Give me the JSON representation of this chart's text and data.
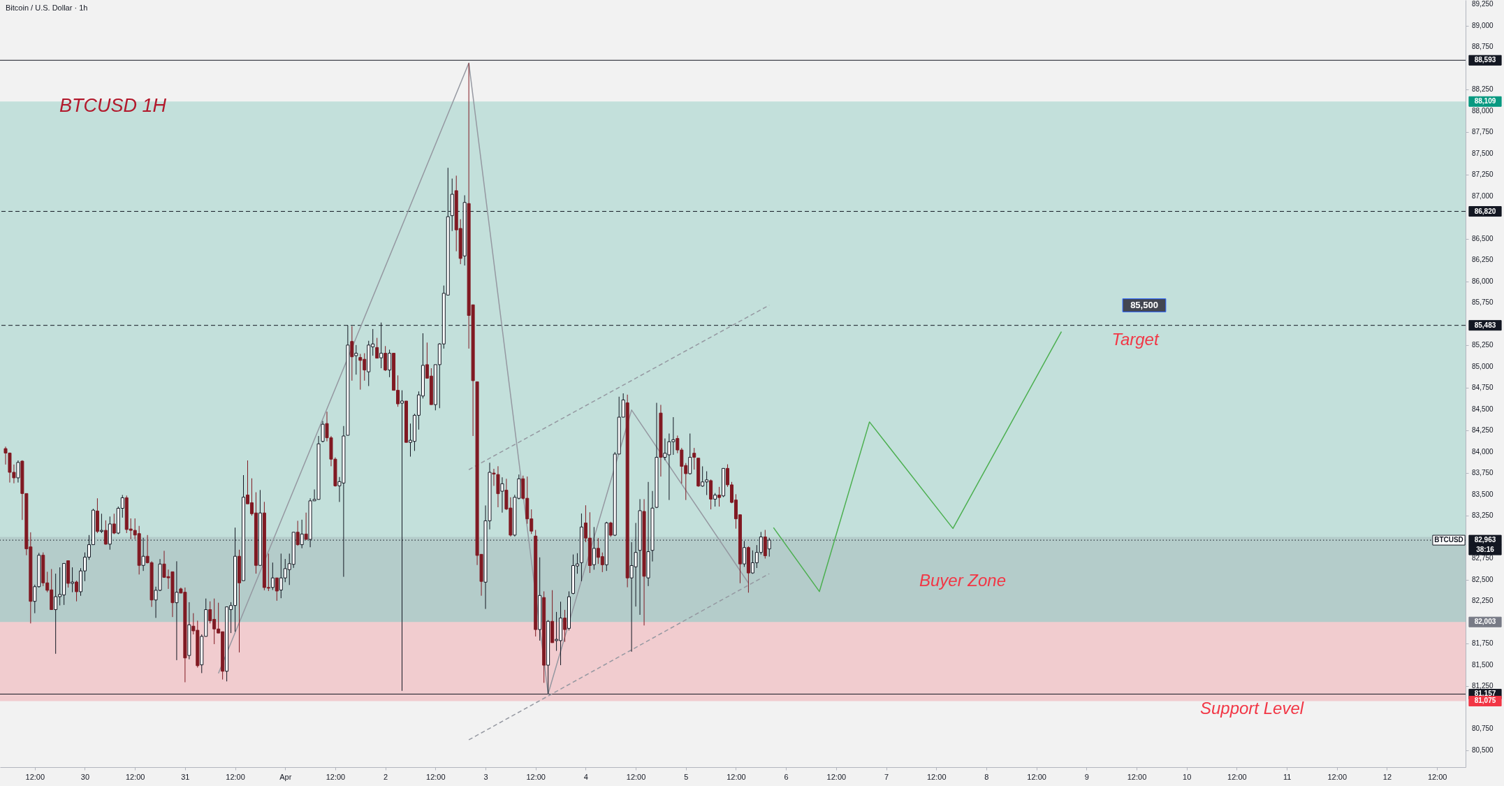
{
  "chart_data": {
    "type": "candlestick",
    "title": "Bitcoin / U.S. Dollar · 1h",
    "xlim": [
      "--03-29T04:30",
      "--04-12T18:00"
    ],
    "ylim": [
      80300,
      89300
    ],
    "xticks": [
      {
        "value": "--03-29T12:00",
        "label": "12:00"
      },
      {
        "value": "--03-30",
        "label": "30"
      },
      {
        "value": "--03-30T12:00",
        "label": "12:00"
      },
      {
        "value": "--03-31",
        "label": "31"
      },
      {
        "value": "--03-31T12:00",
        "label": "12:00"
      },
      {
        "value": "--04-01",
        "label": "Apr"
      },
      {
        "value": "--04-01T12:00",
        "label": "12:00"
      },
      {
        "value": "--04-02",
        "label": "2"
      },
      {
        "value": "--04-02T12:00",
        "label": "12:00"
      },
      {
        "value": "--04-03",
        "label": "3"
      },
      {
        "value": "--04-03T12:00",
        "label": "12:00"
      },
      {
        "value": "--04-04",
        "label": "4"
      },
      {
        "value": "--04-04T12:00",
        "label": "12:00"
      },
      {
        "value": "--04-05",
        "label": "5"
      },
      {
        "value": "--04-05T12:00",
        "label": "12:00"
      },
      {
        "value": "--04-06",
        "label": "6"
      },
      {
        "value": "--04-06T12:00",
        "label": "12:00"
      },
      {
        "value": "--04-07",
        "label": "7"
      },
      {
        "value": "--04-07T12:00",
        "label": "12:00"
      },
      {
        "value": "--04-08",
        "label": "8"
      },
      {
        "value": "--04-08T12:00",
        "label": "12:00"
      },
      {
        "value": "--04-09",
        "label": "9"
      },
      {
        "value": "--04-09T12:00",
        "label": "12:00"
      },
      {
        "value": "--04-10",
        "label": "10"
      },
      {
        "value": "--04-10T12:00",
        "label": "12:00"
      },
      {
        "value": "--04-11",
        "label": "11"
      },
      {
        "value": "--04-11T12:00",
        "label": "12:00"
      },
      {
        "value": "--04-12",
        "label": "12"
      },
      {
        "value": "--04-12T12:00",
        "label": "12:00"
      }
    ],
    "yticks": [
      {
        "value": 80500,
        "label": "80,500"
      },
      {
        "value": 80750,
        "label": "80,750"
      },
      {
        "value": 81250,
        "label": "81,250"
      },
      {
        "value": 81500,
        "label": "81,500"
      },
      {
        "value": 81750,
        "label": "81,750"
      },
      {
        "value": 82250,
        "label": "82,250"
      },
      {
        "value": 82500,
        "label": "82,500"
      },
      {
        "value": 82750,
        "label": "82,750"
      },
      {
        "value": 83250,
        "label": "83,250"
      },
      {
        "value": 83500,
        "label": "83,500"
      },
      {
        "value": 83750,
        "label": "83,750"
      },
      {
        "value": 84000,
        "label": "84,000"
      },
      {
        "value": 84250,
        "label": "84,250"
      },
      {
        "value": 84500,
        "label": "84,500"
      },
      {
        "value": 84750,
        "label": "84,750"
      },
      {
        "value": 85000,
        "label": "85,000"
      },
      {
        "value": 85250,
        "label": "85,250"
      },
      {
        "value": 85750,
        "label": "85,750"
      },
      {
        "value": 86000,
        "label": "86,000"
      },
      {
        "value": 86250,
        "label": "86,250"
      },
      {
        "value": 86500,
        "label": "86,500"
      },
      {
        "value": 87000,
        "label": "87,000"
      },
      {
        "value": 87250,
        "label": "87,250"
      },
      {
        "value": 87500,
        "label": "87,500"
      },
      {
        "value": 87750,
        "label": "87,750"
      },
      {
        "value": 88000,
        "label": "88,000"
      },
      {
        "value": 88250,
        "label": "88,250"
      },
      {
        "value": 88750,
        "label": "88,750"
      },
      {
        "value": 89000,
        "label": "89,000"
      },
      {
        "value": 89250,
        "label": "89,250"
      }
    ],
    "x": [
      "--03-29T05:00",
      "--03-29T06:00",
      "--03-29T07:00",
      "--03-29T08:00",
      "--03-29T09:00",
      "--03-29T10:00",
      "--03-29T11:00",
      "--03-29T12:00",
      "--03-29T13:00",
      "--03-29T14:00",
      "--03-29T15:00",
      "--03-29T16:00",
      "--03-29T17:00",
      "--03-29T18:00",
      "--03-29T19:00",
      "--03-29T20:00",
      "--03-29T21:00",
      "--03-29T22:00",
      "--03-29T23:00",
      "--03-30T00:00",
      "--03-30T01:00",
      "--03-30T02:00",
      "--03-30T03:00",
      "--03-30T04:00",
      "--03-30T05:00",
      "--03-30T06:00",
      "--03-30T07:00",
      "--03-30T08:00",
      "--03-30T09:00",
      "--03-30T10:00",
      "--03-30T11:00",
      "--03-30T12:00",
      "--03-30T13:00",
      "--03-30T14:00",
      "--03-30T15:00",
      "--03-30T16:00",
      "--03-30T17:00",
      "--03-30T18:00",
      "--03-30T19:00",
      "--03-30T20:00",
      "--03-30T21:00",
      "--03-30T22:00",
      "--03-30T23:00",
      "--03-31T00:00",
      "--03-31T01:00",
      "--03-31T02:00",
      "--03-31T03:00",
      "--03-31T04:00",
      "--03-31T05:00",
      "--03-31T06:00",
      "--03-31T07:00",
      "--03-31T08:00",
      "--03-31T09:00",
      "--03-31T10:00",
      "--03-31T11:00",
      "--03-31T12:00",
      "--03-31T13:00",
      "--03-31T14:00",
      "--03-31T15:00",
      "--03-31T16:00",
      "--03-31T17:00",
      "--03-31T18:00",
      "--03-31T19:00",
      "--03-31T20:00",
      "--03-31T21:00",
      "--03-31T22:00",
      "--03-31T23:00",
      "--04-01T00:00",
      "--04-01T01:00",
      "--04-01T02:00",
      "--04-01T03:00",
      "--04-01T04:00",
      "--04-01T05:00",
      "--04-01T06:00",
      "--04-01T07:00",
      "--04-01T08:00",
      "--04-01T09:00",
      "--04-01T10:00",
      "--04-01T11:00",
      "--04-01T12:00",
      "--04-01T13:00",
      "--04-01T14:00",
      "--04-01T15:00",
      "--04-01T16:00",
      "--04-01T17:00",
      "--04-01T18:00",
      "--04-01T19:00",
      "--04-01T20:00",
      "--04-01T21:00",
      "--04-01T22:00",
      "--04-01T23:00",
      "--04-02T00:00",
      "--04-02T01:00",
      "--04-02T02:00",
      "--04-02T03:00",
      "--04-02T04:00",
      "--04-02T05:00",
      "--04-02T06:00",
      "--04-02T07:00",
      "--04-02T08:00",
      "--04-02T09:00",
      "--04-02T10:00",
      "--04-02T11:00",
      "--04-02T12:00",
      "--04-02T13:00",
      "--04-02T14:00",
      "--04-02T15:00",
      "--04-02T16:00",
      "--04-02T17:00",
      "--04-02T18:00",
      "--04-02T19:00",
      "--04-02T20:00",
      "--04-02T21:00",
      "--04-02T22:00",
      "--04-02T23:00",
      "--04-03T00:00",
      "--04-03T01:00",
      "--04-03T02:00",
      "--04-03T03:00",
      "--04-03T04:00",
      "--04-03T05:00",
      "--04-03T06:00",
      "--04-03T07:00",
      "--04-03T08:00",
      "--04-03T09:00",
      "--04-03T10:00",
      "--04-03T11:00",
      "--04-03T12:00",
      "--04-03T13:00",
      "--04-03T14:00",
      "--04-03T15:00",
      "--04-03T16:00",
      "--04-03T17:00",
      "--04-03T18:00",
      "--04-03T19:00",
      "--04-03T20:00",
      "--04-03T21:00",
      "--04-03T22:00",
      "--04-03T23:00",
      "--04-04T00:00",
      "--04-04T01:00",
      "--04-04T02:00",
      "--04-04T03:00",
      "--04-04T04:00",
      "--04-04T05:00",
      "--04-04T06:00",
      "--04-04T07:00",
      "--04-04T08:00",
      "--04-04T09:00",
      "--04-04T10:00",
      "--04-04T11:00",
      "--04-04T12:00",
      "--04-04T13:00",
      "--04-04T14:00",
      "--04-04T15:00",
      "--04-04T16:00",
      "--04-04T17:00",
      "--04-04T18:00",
      "--04-04T19:00",
      "--04-04T20:00",
      "--04-04T21:00",
      "--04-04T22:00",
      "--04-04T23:00",
      "--04-05T00:00",
      "--04-05T01:00",
      "--04-05T02:00",
      "--04-05T03:00",
      "--04-05T04:00",
      "--04-05T05:00",
      "--04-05T06:00",
      "--04-05T07:00",
      "--04-05T08:00",
      "--04-05T09:00",
      "--04-05T10:00",
      "--04-05T11:00",
      "--04-05T12:00",
      "--04-05T13:00",
      "--04-05T14:00",
      "--04-05T15:00",
      "--04-05T16:00",
      "--04-05T17:00",
      "--04-05T18:00",
      "--04-05T19:00",
      "--04-05T20:00"
    ],
    "ohlc": [
      [
        84037,
        84060,
        83850,
        83985
      ],
      [
        83985,
        83990,
        83639,
        83759
      ],
      [
        83759,
        83850,
        83630,
        83694
      ],
      [
        83694,
        83898,
        83639,
        83875
      ],
      [
        83890,
        83900,
        83200,
        83510
      ],
      [
        83510,
        83510,
        82786,
        82861
      ],
      [
        82884,
        83055,
        81986,
        82245
      ],
      [
        82245,
        82440,
        82106,
        82417
      ],
      [
        82417,
        82813,
        82407,
        82786
      ],
      [
        82786,
        82819,
        82424,
        82462
      ],
      [
        82462,
        82592,
        82352,
        82375
      ],
      [
        82380,
        82624,
        82148,
        82148
      ],
      [
        82148,
        82570,
        81630,
        82300
      ],
      [
        82300,
        82644,
        82197,
        82326
      ],
      [
        82320,
        82690,
        82203,
        82690
      ],
      [
        82722,
        82722,
        82407,
        82456
      ],
      [
        82456,
        82644,
        82352,
        82472
      ],
      [
        82472,
        82488,
        82245,
        82358
      ],
      [
        82358,
        82634,
        82310,
        82602
      ],
      [
        82602,
        82819,
        82482,
        82764
      ],
      [
        82764,
        83023,
        82732,
        82910
      ],
      [
        82910,
        83331,
        82910,
        83315
      ],
      [
        83305,
        83454,
        83046,
        83065
      ],
      [
        83065,
        83273,
        83046,
        83078
      ],
      [
        83078,
        83195,
        82910,
        82916
      ],
      [
        82916,
        83240,
        82851,
        83153
      ],
      [
        83153,
        83273,
        83033,
        83046
      ],
      [
        83046,
        83357,
        83033,
        83337
      ],
      [
        83337,
        83493,
        83227,
        83460
      ],
      [
        83460,
        83486,
        83046,
        83088
      ],
      [
        83094,
        83218,
        82974,
        83078
      ],
      [
        83078,
        83218,
        82974,
        83023
      ],
      [
        83040,
        83130,
        82560,
        82667
      ],
      [
        82667,
        82991,
        82602,
        82774
      ],
      [
        82774,
        83023,
        82690,
        82699
      ],
      [
        82699,
        82715,
        82180,
        82261
      ],
      [
        82261,
        82417,
        82051,
        82375
      ],
      [
        82375,
        82741,
        82365,
        82683
      ],
      [
        82683,
        82838,
        82521,
        82527
      ],
      [
        82535,
        82618,
        82391,
        82521
      ],
      [
        82592,
        82592,
        82061,
        82229
      ],
      [
        82229,
        82715,
        81555,
        82352
      ],
      [
        82391,
        82407,
        82342,
        82342
      ],
      [
        82352,
        82407,
        81296,
        81581
      ],
      [
        81610,
        82235,
        81565,
        81970
      ],
      [
        81954,
        82106,
        81857,
        81899
      ],
      [
        81906,
        82018,
        81468,
        81490
      ],
      [
        81500,
        81857,
        81403,
        81834
      ],
      [
        81834,
        82278,
        81834,
        82148
      ],
      [
        82148,
        82245,
        81986,
        82018
      ],
      [
        82034,
        82278,
        81743,
        81921
      ],
      [
        81921,
        82229,
        81873,
        81873
      ],
      [
        81889,
        81889,
        81328,
        81425
      ],
      [
        81425,
        82180,
        81306,
        82180
      ],
      [
        82148,
        82235,
        81873,
        82196
      ],
      [
        82196,
        83110,
        81889,
        82774
      ],
      [
        82774,
        82851,
        81646,
        82462
      ],
      [
        82488,
        83726,
        82488,
        83467
      ],
      [
        83493,
        83898,
        83389,
        83389
      ],
      [
        83402,
        83688,
        83250,
        83273
      ],
      [
        83282,
        83525,
        82570,
        82667
      ],
      [
        82667,
        83551,
        82667,
        83282
      ],
      [
        83282,
        83412,
        82375,
        82407
      ],
      [
        82408,
        82805,
        82366,
        82400
      ],
      [
        82408,
        82700,
        82378,
        82520
      ],
      [
        82520,
        82520,
        82252,
        82366
      ],
      [
        82378,
        82805,
        82282,
        82520
      ],
      [
        82520,
        82742,
        82470,
        82629
      ],
      [
        82617,
        82805,
        82437,
        82687
      ],
      [
        82679,
        83056,
        82638,
        83056
      ],
      [
        83056,
        83190,
        82897,
        82910
      ],
      [
        82910,
        83203,
        82868,
        83035
      ],
      [
        83035,
        83286,
        82972,
        82972
      ],
      [
        82972,
        83454,
        82880,
        83424
      ],
      [
        83424,
        83558,
        83424,
        83441
      ],
      [
        83441,
        84185,
        83441,
        84093
      ],
      [
        84122,
        84361,
        84110,
        84323
      ],
      [
        84331,
        84470,
        84122,
        84164
      ],
      [
        84164,
        84185,
        83830,
        83913
      ],
      [
        83913,
        83934,
        83591,
        83600
      ],
      [
        83600,
        83704,
        83411,
        83650
      ],
      [
        83633,
        84302,
        82533,
        84185
      ],
      [
        84193,
        85482,
        84193,
        85252
      ],
      [
        85294,
        85474,
        84834,
        85114
      ],
      [
        85127,
        85252,
        84905,
        85156
      ],
      [
        85106,
        85148,
        84729,
        85072
      ],
      [
        85085,
        85156,
        84834,
        84959
      ],
      [
        84938,
        85302,
        84771,
        85252
      ],
      [
        85231,
        85440,
        85127,
        85265
      ],
      [
        85223,
        85336,
        85098,
        85098
      ],
      [
        85102,
        85516,
        84980,
        85156
      ],
      [
        85156,
        85240,
        84947,
        84959
      ],
      [
        84959,
        85198,
        84875,
        85156
      ],
      [
        85156,
        85156,
        84721,
        84721
      ],
      [
        84721,
        84896,
        84528,
        84562
      ],
      [
        84570,
        84721,
        81195,
        84595
      ],
      [
        84595,
        84595,
        84110,
        84110
      ],
      [
        84110,
        84331,
        83943,
        84135
      ],
      [
        84122,
        84445,
        84010,
        84428
      ],
      [
        84428,
        84708,
        84260,
        84667
      ],
      [
        84654,
        85390,
        84625,
        85014
      ],
      [
        85022,
        85281,
        84863,
        84863
      ],
      [
        84888,
        84980,
        84553,
        84553
      ],
      [
        84553,
        85022,
        84486,
        85022
      ],
      [
        85022,
        85273,
        84511,
        85265
      ],
      [
        85265,
        85950,
        85210,
        85859
      ],
      [
        85838,
        87331,
        85838,
        86758
      ],
      [
        86770,
        87205,
        86590,
        87021
      ],
      [
        87063,
        87239,
        86352,
        86603
      ],
      [
        86620,
        86728,
        86201,
        86268
      ],
      [
        86297,
        87009,
        86185,
        86925
      ],
      [
        86912,
        88560,
        85210,
        85599
      ],
      [
        85724,
        85724,
        84185,
        84834
      ],
      [
        84821,
        84821,
        82671,
        82784
      ],
      [
        82797,
        82797,
        82311,
        82479
      ],
      [
        82470,
        83370,
        82156,
        83190
      ],
      [
        83190,
        83871,
        83089,
        83759
      ],
      [
        83750,
        83800,
        83600,
        83738
      ],
      [
        83733,
        83830,
        83349,
        83508
      ],
      [
        83537,
        83700,
        83286,
        83625
      ],
      [
        83549,
        83683,
        83316,
        83328
      ],
      [
        83340,
        83466,
        83006,
        83022
      ],
      [
        83022,
        83495,
        83006,
        83466
      ],
      [
        83454,
        83733,
        83441,
        83683
      ],
      [
        83683,
        83720,
        83441,
        83454
      ],
      [
        83454,
        83709,
        83155,
        83213
      ],
      [
        83213,
        83324,
        83035,
        83069
      ],
      [
        83011,
        83083,
        81833,
        81914
      ],
      [
        81914,
        82761,
        81784,
        82314
      ],
      [
        82290,
        82362,
        81289,
        81496
      ],
      [
        81496,
        82025,
        81159,
        82011
      ],
      [
        82011,
        82376,
        81760,
        81760
      ],
      [
        81784,
        82121,
        81664,
        81799
      ],
      [
        81784,
        82241,
        81496,
        82049
      ],
      [
        82049,
        82145,
        81770,
        81914
      ],
      [
        81928,
        82362,
        81904,
        82299
      ],
      [
        82338,
        82795,
        82328,
        82665
      ],
      [
        82660,
        82810,
        82569,
        82684
      ],
      [
        82699,
        83276,
        82482,
        83117
      ],
      [
        83165,
        83372,
        82939,
        82987
      ],
      [
        82987,
        83290,
        82578,
        82665
      ],
      [
        82675,
        83117,
        82616,
        82867
      ],
      [
        82867,
        82987,
        82684,
        82761
      ],
      [
        82770,
        82818,
        82588,
        82674
      ],
      [
        82674,
        83179,
        82602,
        83165
      ],
      [
        83165,
        83179,
        83001,
        83021
      ],
      [
        83021,
        83997,
        83011,
        83973
      ],
      [
        83973,
        84646,
        83973,
        84406
      ],
      [
        84406,
        84685,
        84406,
        84608
      ],
      [
        84574,
        84670,
        82410,
        82520
      ],
      [
        82520,
        82939,
        81654,
        82665
      ],
      [
        82650,
        83165,
        82184,
        82819
      ],
      [
        82843,
        83444,
        82087,
        83309
      ],
      [
        83300,
        83444,
        81962,
        82539
      ],
      [
        82520,
        83646,
        82424,
        82828
      ],
      [
        82843,
        83540,
        82713,
        83339
      ],
      [
        83348,
        84574,
        83339,
        83935
      ],
      [
        84454,
        84550,
        83709,
        83935
      ],
      [
        83935,
        84156,
        83901,
        83983
      ],
      [
        83964,
        84214,
        83434,
        84118
      ],
      [
        84118,
        84406,
        83964,
        84142
      ],
      [
        84156,
        84190,
        83983,
        84021
      ],
      [
        84021,
        84045,
        83627,
        83829
      ],
      [
        83839,
        83868,
        83434,
        83743
      ],
      [
        83743,
        84214,
        83733,
        83935
      ],
      [
        83983,
        84045,
        83791,
        83935
      ],
      [
        83925,
        83925,
        83589,
        83598
      ],
      [
        83598,
        83829,
        83589,
        83646
      ],
      [
        83646,
        83771,
        83492,
        83670
      ],
      [
        83661,
        83675,
        83324,
        83444
      ],
      [
        83444,
        83516,
        83357,
        83492
      ],
      [
        83492,
        83588,
        83357,
        83463
      ],
      [
        83482,
        83805,
        83468,
        83805
      ],
      [
        83805,
        83853,
        83588,
        83612
      ],
      [
        83612,
        83646,
        83396,
        83406
      ],
      [
        83434,
        83502,
        83098,
        83213
      ],
      [
        83261,
        83261,
        82458,
        82684
      ],
      [
        82684,
        82953,
        82650,
        82876
      ],
      [
        82876,
        82891,
        82347,
        82578
      ],
      [
        82578,
        82843,
        82568,
        82698
      ],
      [
        82698,
        82905,
        82636,
        82819
      ],
      [
        82819,
        83059,
        82795,
        83001
      ],
      [
        83001,
        83083,
        82747,
        82780
      ],
      [
        82860,
        82990,
        82770,
        82963
      ]
    ],
    "series": [
      {
        "type": "line",
        "color": "#9598a1",
        "x": [
          "--03-31T08:00",
          "--04-02T20:00",
          "--04-03T15:00",
          "--04-04T11:00",
          "--04-05T15:00"
        ],
        "values": [
          81400,
          88560,
          81160,
          84490,
          82460
        ]
      },
      {
        "type": "line",
        "color": "#9598a1",
        "line_style": "dashed",
        "x": [
          "--04-02T20:00",
          "--04-05T20:00"
        ],
        "values": [
          80620,
          82570
        ]
      },
      {
        "type": "line",
        "color": "#9598a1",
        "line_style": "dashed",
        "x": [
          "--04-02T20:00",
          "--04-05T20:00"
        ],
        "values": [
          83790,
          85720
        ]
      },
      {
        "type": "line",
        "color": "#4caf50",
        "x": [
          "--04-05T21:00",
          "--04-06T08:00",
          "--04-06T20:00",
          "--04-07T16:00",
          "--04-08T18:00"
        ],
        "values": [
          83110,
          82360,
          84350,
          83100,
          85410
        ]
      }
    ],
    "ref_lines": [
      {
        "axis": "y",
        "value": 88593,
        "label": "88,593",
        "line_style": "solid",
        "color": "#131722"
      },
      {
        "axis": "y",
        "value": 86820,
        "label": "86,820",
        "line_style": "dashed",
        "color": "#131722"
      },
      {
        "axis": "y",
        "value": 85483,
        "label": "85,483",
        "line_style": "dashed",
        "color": "#131722"
      },
      {
        "axis": "y",
        "value": 82963,
        "label": "82,963",
        "line_style": "dotted",
        "color": "#131722"
      },
      {
        "axis": "y",
        "value": 81157,
        "label": "81,157",
        "line_style": "solid",
        "color": "#131722"
      }
    ],
    "bands": [
      {
        "axis": "y",
        "from": 82003,
        "to": 88109,
        "label": "88,109",
        "color": "#089981"
      },
      {
        "axis": "y",
        "from": 82003,
        "to": 81075,
        "label": "81,075",
        "color": "#f23645"
      },
      {
        "axis": "y",
        "from": 83000,
        "to": 82003,
        "label": "82,003",
        "color": "#787b86"
      }
    ],
    "annotations": [
      "BTCUSD 1H",
      "BTCUSD",
      "38:16",
      "Target",
      "85,500",
      "Buyer Zone",
      "Support Level"
    ]
  }
}
